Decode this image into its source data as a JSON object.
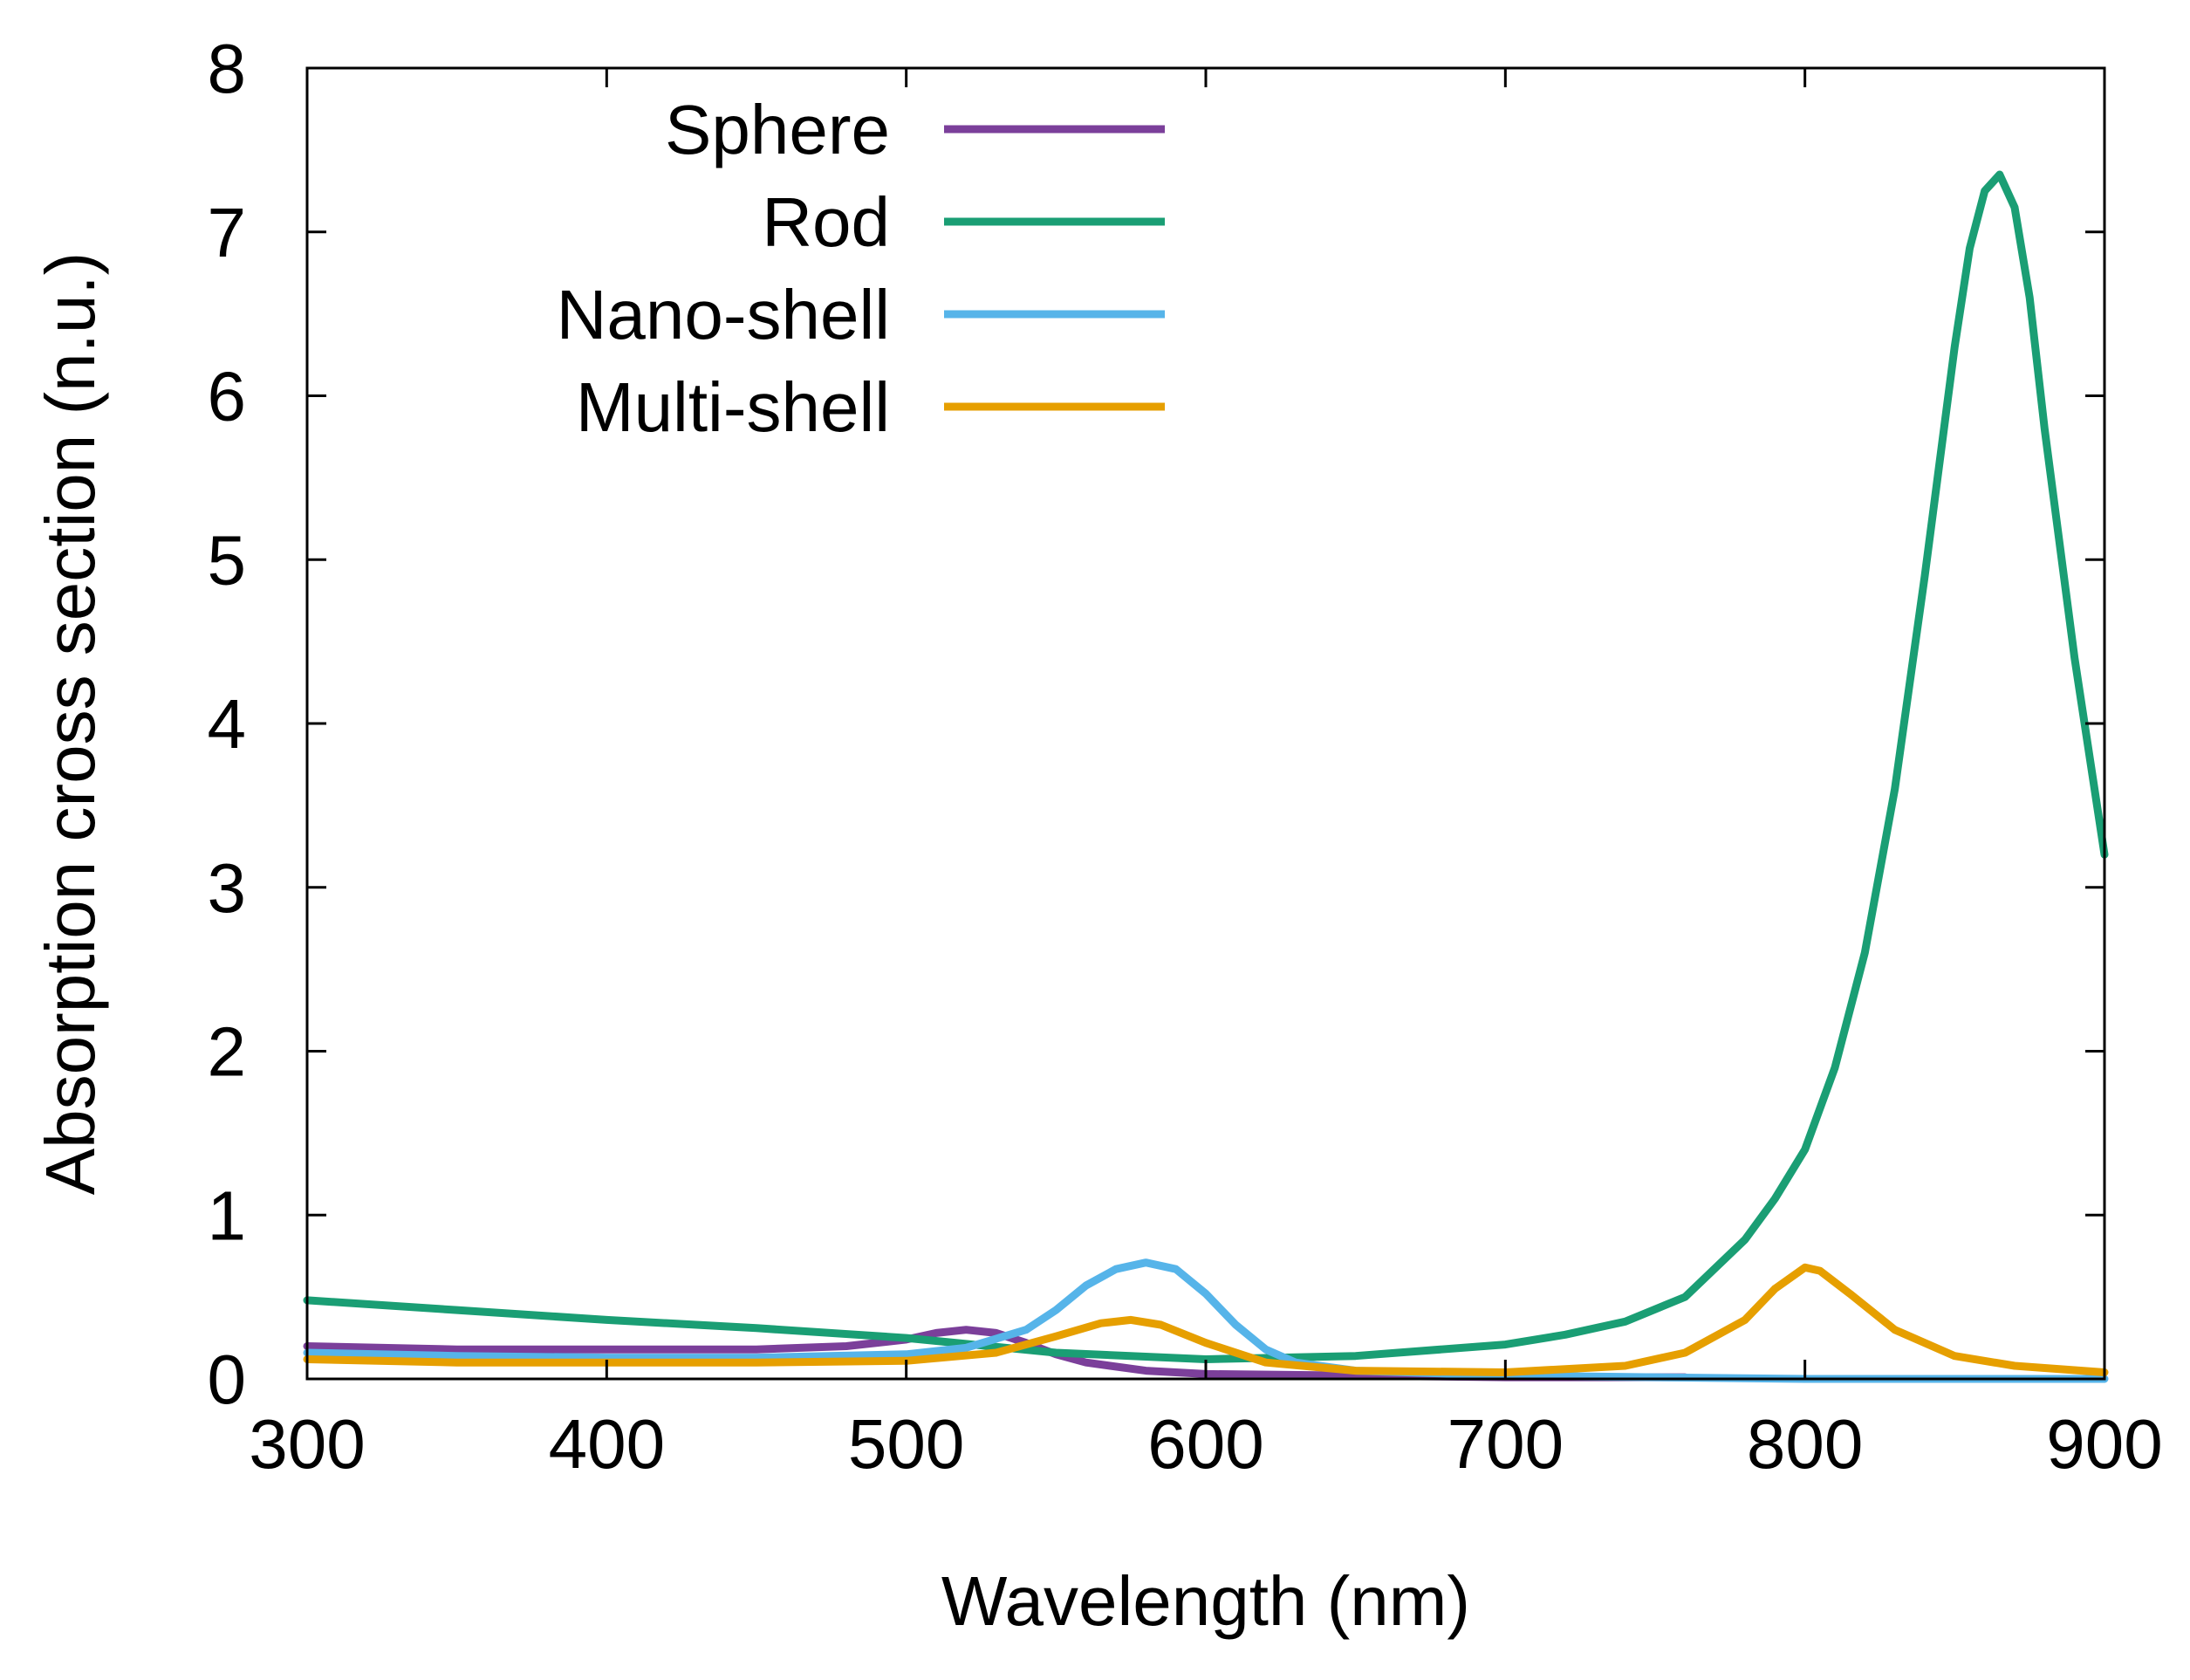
{
  "chart_data": {
    "type": "line",
    "title": "",
    "xlabel": "Wavelength (nm)",
    "ylabel": "Absorption cross section (n.u.)",
    "xlim": [
      300,
      900
    ],
    "ylim": [
      0,
      8
    ],
    "xticks": [
      300,
      400,
      500,
      600,
      700,
      800,
      900
    ],
    "yticks": [
      0,
      1,
      2,
      3,
      4,
      5,
      6,
      7,
      8
    ],
    "grid": false,
    "legend_position": "top-left",
    "series": [
      {
        "name": "Sphere",
        "color": "#7b3f9a",
        "x": [
          300,
          350,
          400,
          450,
          480,
          500,
          510,
          520,
          530,
          540,
          550,
          560,
          580,
          600,
          650,
          700,
          750,
          760
        ],
        "y": [
          0.2,
          0.18,
          0.18,
          0.18,
          0.2,
          0.24,
          0.28,
          0.3,
          0.28,
          0.22,
          0.15,
          0.1,
          0.05,
          0.03,
          0.02,
          0.01,
          0.01,
          0.01
        ]
      },
      {
        "name": "Rod",
        "color": "#1a9e74",
        "x": [
          300,
          350,
          400,
          450,
          500,
          550,
          600,
          650,
          700,
          720,
          740,
          760,
          780,
          790,
          800,
          810,
          820,
          830,
          840,
          850,
          855,
          860,
          865,
          870,
          875,
          880,
          890,
          900
        ],
        "y": [
          0.48,
          0.42,
          0.36,
          0.31,
          0.25,
          0.16,
          0.12,
          0.14,
          0.21,
          0.27,
          0.35,
          0.5,
          0.85,
          1.1,
          1.4,
          1.9,
          2.6,
          3.6,
          4.9,
          6.3,
          6.9,
          7.25,
          7.35,
          7.15,
          6.6,
          5.8,
          4.4,
          3.2
        ]
      },
      {
        "name": "Nano-shell",
        "color": "#56b4e9",
        "x": [
          300,
          350,
          400,
          450,
          500,
          520,
          540,
          550,
          560,
          570,
          580,
          590,
          600,
          610,
          620,
          630,
          650,
          700,
          750,
          800,
          850,
          900
        ],
        "y": [
          0.16,
          0.14,
          0.13,
          0.13,
          0.15,
          0.19,
          0.3,
          0.42,
          0.57,
          0.67,
          0.71,
          0.67,
          0.52,
          0.33,
          0.18,
          0.1,
          0.05,
          0.02,
          0.01,
          0.0,
          0.0,
          0.0
        ]
      },
      {
        "name": "Multi-shell",
        "color": "#e69f00",
        "x": [
          300,
          350,
          400,
          450,
          500,
          530,
          550,
          565,
          575,
          585,
          600,
          620,
          650,
          700,
          740,
          760,
          780,
          790,
          800,
          805,
          815,
          830,
          850,
          870,
          900
        ],
        "y": [
          0.12,
          0.1,
          0.1,
          0.1,
          0.11,
          0.16,
          0.26,
          0.34,
          0.36,
          0.33,
          0.22,
          0.1,
          0.05,
          0.04,
          0.08,
          0.16,
          0.36,
          0.55,
          0.68,
          0.66,
          0.52,
          0.3,
          0.14,
          0.08,
          0.04
        ]
      }
    ]
  }
}
